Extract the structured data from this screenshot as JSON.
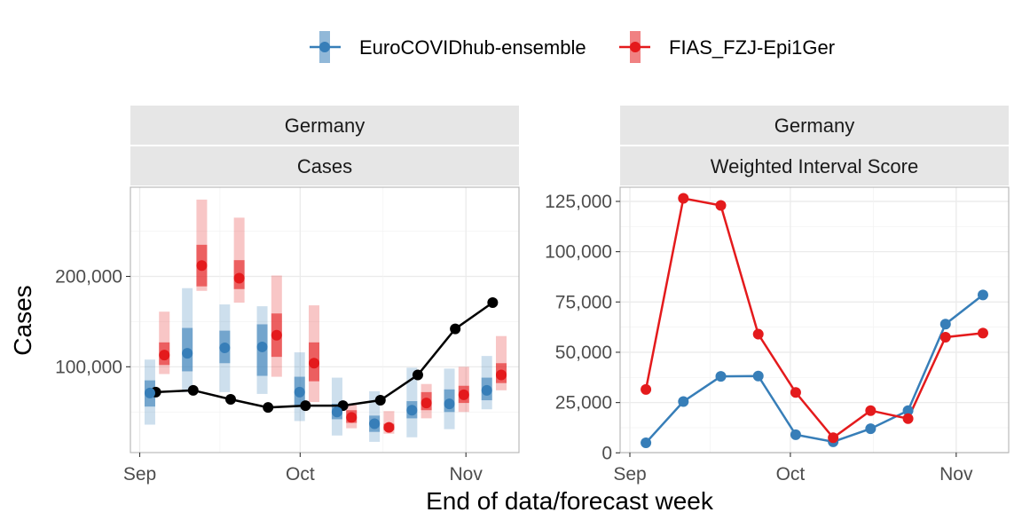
{
  "colors": {
    "ensemble": "#377eb8",
    "fias": "#e41a1c",
    "observed": "#000000"
  },
  "legend": {
    "items": [
      {
        "key": "ensemble",
        "label": "EuroCOVIDhub-ensemble"
      },
      {
        "key": "fias",
        "label": "FIAS_FZJ-Epi1Ger"
      }
    ]
  },
  "axes": {
    "xlabel": "End of data/forecast week",
    "ylabel": "Cases"
  },
  "chart_data": [
    {
      "type": "line",
      "panel_strips": [
        "Germany",
        "Cases"
      ],
      "ylabel": "Cases",
      "xlabel": "End of data/forecast week",
      "x_ticks": [
        "Sep",
        "Oct",
        "Nov"
      ],
      "y_ticks": [
        "100,000",
        "200,000"
      ],
      "ylim": [
        3000,
        297000
      ],
      "x": [
        "2021-09-04",
        "2021-09-11",
        "2021-09-18",
        "2021-09-25",
        "2021-10-02",
        "2021-10-09",
        "2021-10-16",
        "2021-10-23",
        "2021-10-30",
        "2021-11-06"
      ],
      "observed": [
        72000,
        74000,
        64000,
        55000,
        57000,
        57000,
        63000,
        91000,
        142000,
        171000
      ],
      "series": [
        {
          "name": "EuroCOVIDhub-ensemble",
          "key": "ensemble",
          "median": [
            71000,
            115000,
            121000,
            122000,
            72000,
            50000,
            37000,
            52000,
            59000,
            74000
          ],
          "q25": [
            56000,
            95000,
            104000,
            90000,
            56000,
            42000,
            28000,
            43000,
            50000,
            63000
          ],
          "q75": [
            85000,
            143000,
            140000,
            147000,
            89000,
            59000,
            46000,
            62000,
            75000,
            88000
          ],
          "q05": [
            36000,
            72000,
            72000,
            70000,
            40000,
            24000,
            17000,
            22000,
            31000,
            53000
          ],
          "q95": [
            108000,
            187000,
            169000,
            167000,
            116000,
            88000,
            73000,
            99000,
            98000,
            112000
          ]
        },
        {
          "name": "FIAS_FZJ-Epi1Ger",
          "key": "fias",
          "median": [
            113000,
            212000,
            198000,
            135000,
            104000,
            44000,
            33000,
            60000,
            69000,
            91000
          ],
          "q25": [
            102000,
            189000,
            186000,
            111000,
            84000,
            38000,
            30000,
            52000,
            60000,
            82000
          ],
          "q75": [
            127000,
            235000,
            218000,
            159000,
            127000,
            52000,
            37000,
            72000,
            79000,
            104000
          ],
          "q05": [
            92000,
            184000,
            171000,
            89000,
            61000,
            32000,
            26000,
            43000,
            50000,
            74000
          ],
          "q95": [
            161000,
            285000,
            265000,
            201000,
            168000,
            58000,
            51000,
            81000,
            100000,
            134000
          ]
        }
      ]
    },
    {
      "type": "line",
      "panel_strips": [
        "Germany",
        "Weighted Interval Score"
      ],
      "x_ticks": [
        "Sep",
        "Oct",
        "Nov"
      ],
      "y_ticks": [
        "0",
        "25,000",
        "50,000",
        "75,000",
        "100,000",
        "125,000"
      ],
      "ylim": [
        -500,
        132000
      ],
      "x": [
        "2021-09-04",
        "2021-09-11",
        "2021-09-18",
        "2021-09-25",
        "2021-10-02",
        "2021-10-09",
        "2021-10-16",
        "2021-10-23",
        "2021-10-30",
        "2021-11-06"
      ],
      "series": [
        {
          "name": "EuroCOVIDhub-ensemble",
          "key": "ensemble",
          "values": [
            5000,
            25500,
            38000,
            38200,
            9000,
            5500,
            12000,
            21000,
            64000,
            78500
          ]
        },
        {
          "name": "FIAS_FZJ-Epi1Ger",
          "key": "fias",
          "values": [
            31500,
            126500,
            123000,
            59000,
            30000,
            7500,
            21000,
            17000,
            57500,
            59500
          ]
        }
      ]
    }
  ]
}
